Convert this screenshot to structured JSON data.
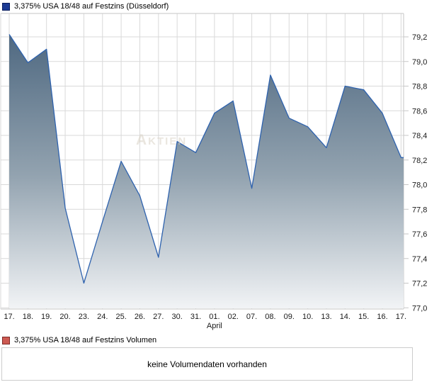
{
  "legend": {
    "price_label": "3,375% USA 18/48 auf Festzins (Düsseldorf)",
    "volume_label": "3,375% USA 18/48 auf Festzins Volumen"
  },
  "watermark": {
    "text": "Aktien"
  },
  "volume": {
    "empty_message": "keine Volumendaten vorhanden"
  },
  "colors": {
    "line": "#2e62ae",
    "fill_top": "#45607a",
    "fill_mid": "#93a3b0",
    "fill_bottom": "#f2f4f6",
    "grid": "#d9d9d9",
    "frame": "#c6c6c6",
    "tick_text": "#1a1a1a",
    "price_swatch": "#1c3b94",
    "price_swatch_border": "#0a1e5e",
    "volume_swatch": "#cd5a52",
    "volume_swatch_border": "#7e2a27",
    "watermark": "#d9d2c6"
  },
  "chart_data": {
    "type": "area",
    "title": "3,375% USA 18/48 auf Festzins (Düsseldorf)",
    "x_labels": [
      "17.",
      "18.",
      "19.",
      "20.",
      "23.",
      "24.",
      "25.",
      "26.",
      "27.",
      "30.",
      "31.",
      "01.",
      "02.",
      "07.",
      "08.",
      "09.",
      "10.",
      "13.",
      "14.",
      "15.",
      "16.",
      "17."
    ],
    "month_label": "April",
    "month_label_index": 11,
    "values": [
      79.22,
      78.99,
      79.1,
      77.81,
      77.2,
      77.7,
      78.19,
      77.91,
      77.41,
      78.35,
      78.26,
      78.58,
      78.68,
      77.97,
      78.89,
      78.54,
      78.47,
      78.3,
      78.8,
      78.77,
      78.58,
      78.22
    ],
    "y_ticks": [
      77.0,
      77.2,
      77.4,
      77.6,
      77.8,
      78.0,
      78.2,
      78.4,
      78.6,
      78.8,
      79.0,
      79.2
    ],
    "ylim": [
      76.99,
      79.39
    ],
    "grid": true,
    "legend_position": "top-left",
    "axis_side": "right",
    "decimal_separator": ","
  }
}
